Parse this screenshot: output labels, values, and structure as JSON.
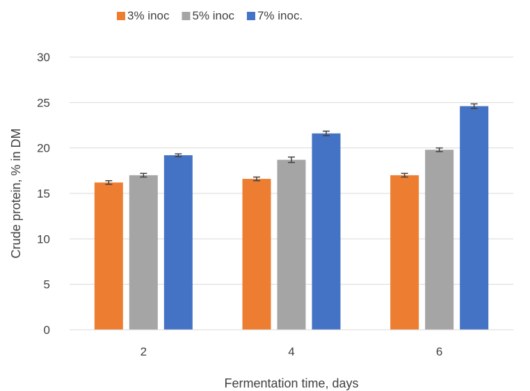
{
  "chart_data": {
    "type": "bar",
    "title": "",
    "xlabel": "Fermentation time, days",
    "ylabel": "Crude protein, % in DM",
    "categories": [
      "2",
      "4",
      "6"
    ],
    "ylim": [
      0,
      30
    ],
    "yticks": [
      "0",
      "5",
      "10",
      "15",
      "20",
      "25",
      "30"
    ],
    "legend_position": "top",
    "grid": true,
    "series": [
      {
        "name": "3% inoc",
        "color": "#ED7D31",
        "values": [
          16.2,
          16.6,
          17.0
        ],
        "errors": [
          0.2,
          0.2,
          0.2
        ]
      },
      {
        "name": "5% inoc",
        "color": "#A5A5A5",
        "values": [
          17.0,
          18.7,
          19.8
        ],
        "errors": [
          0.2,
          0.3,
          0.2
        ]
      },
      {
        "name": "7% inoc.",
        "color": "#4472C4",
        "values": [
          19.2,
          21.6,
          24.6
        ],
        "errors": [
          0.15,
          0.25,
          0.25
        ]
      }
    ]
  }
}
